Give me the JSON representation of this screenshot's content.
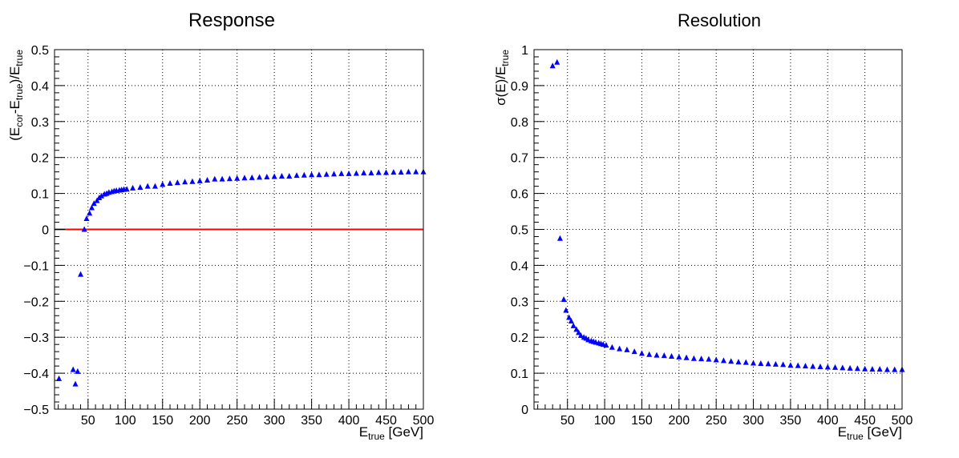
{
  "charts": [
    {
      "type": "scatter",
      "title": "Response",
      "xlabel": {
        "base": "E",
        "sub": "true",
        "suffix": " [GeV]"
      },
      "ylabel_parts": [
        {
          "t": "(E",
          "sub": false
        },
        {
          "t": "cor",
          "sub": true
        },
        {
          "t": "-E",
          "sub": false
        },
        {
          "t": "true",
          "sub": true
        },
        {
          "t": ")/E",
          "sub": false
        },
        {
          "t": "true",
          "sub": true
        }
      ],
      "xlim": [
        5,
        500
      ],
      "ylim": [
        -0.5,
        0.5
      ],
      "xticks": [
        50,
        100,
        150,
        200,
        250,
        300,
        350,
        400,
        450,
        500
      ],
      "xtick_labels": [
        "50",
        "100",
        "150",
        "200",
        "250",
        "300",
        "350",
        "400",
        "450",
        "500"
      ],
      "yticks": [
        -0.5,
        -0.4,
        -0.3,
        -0.2,
        -0.1,
        0,
        0.1,
        0.2,
        0.3,
        0.4,
        0.5
      ],
      "ytick_labels": [
        "−0.5",
        "−0.4",
        "−0.3",
        "−0.2",
        "−0.1",
        "0",
        "0.1",
        "0.2",
        "0.3",
        "0.4",
        "0.5"
      ],
      "hline": {
        "y": 0,
        "color": "#ff0000"
      },
      "marker_color": "#0000ff",
      "grid": true,
      "series": [
        {
          "name": "response",
          "x": [
            11,
            30,
            33,
            36,
            40,
            45,
            48,
            52,
            55,
            58,
            62,
            65,
            68,
            72,
            75,
            78,
            82,
            85,
            88,
            92,
            95,
            98,
            102,
            110,
            120,
            130,
            140,
            150,
            160,
            170,
            180,
            190,
            200,
            210,
            220,
            230,
            240,
            250,
            260,
            270,
            280,
            290,
            300,
            310,
            320,
            330,
            340,
            350,
            360,
            370,
            380,
            390,
            400,
            410,
            420,
            430,
            440,
            450,
            460,
            470,
            480,
            490,
            500
          ],
          "y": [
            -0.415,
            -0.39,
            -0.43,
            -0.395,
            -0.125,
            0.0,
            0.03,
            0.045,
            0.06,
            0.072,
            0.08,
            0.088,
            0.093,
            0.098,
            0.1,
            0.103,
            0.105,
            0.107,
            0.108,
            0.109,
            0.11,
            0.111,
            0.112,
            0.115,
            0.117,
            0.12,
            0.12,
            0.125,
            0.128,
            0.13,
            0.132,
            0.133,
            0.135,
            0.137,
            0.14,
            0.14,
            0.141,
            0.142,
            0.143,
            0.144,
            0.145,
            0.146,
            0.147,
            0.148,
            0.148,
            0.15,
            0.151,
            0.152,
            0.152,
            0.153,
            0.154,
            0.155,
            0.155,
            0.156,
            0.157,
            0.157,
            0.158,
            0.158,
            0.159,
            0.159,
            0.16,
            0.16,
            0.16
          ]
        }
      ]
    },
    {
      "type": "scatter",
      "title": "Resolution",
      "xlabel": {
        "base": "E",
        "sub": "true",
        "suffix": " [GeV]"
      },
      "ylabel_parts": [
        {
          "t": "σ(E)/E",
          "sub": false
        },
        {
          "t": "true",
          "sub": true
        }
      ],
      "xlim": [
        5,
        500
      ],
      "ylim": [
        0,
        1
      ],
      "xticks": [
        50,
        100,
        150,
        200,
        250,
        300,
        350,
        400,
        450,
        500
      ],
      "xtick_labels": [
        "50",
        "100",
        "150",
        "200",
        "250",
        "300",
        "350",
        "400",
        "450",
        "500"
      ],
      "yticks": [
        0,
        0.1,
        0.2,
        0.3,
        0.4,
        0.5,
        0.6,
        0.7,
        0.8,
        0.9,
        1
      ],
      "ytick_labels": [
        "0",
        "0.1",
        "0.2",
        "0.3",
        "0.4",
        "0.5",
        "0.6",
        "0.7",
        "0.8",
        "0.9",
        "1"
      ],
      "marker_color": "#0000ff",
      "grid": true,
      "series": [
        {
          "name": "resolution",
          "x": [
            30,
            36,
            40,
            45,
            48,
            52,
            55,
            58,
            62,
            65,
            68,
            72,
            75,
            78,
            82,
            85,
            88,
            92,
            95,
            98,
            102,
            110,
            120,
            130,
            140,
            150,
            160,
            170,
            180,
            190,
            200,
            210,
            220,
            230,
            240,
            250,
            260,
            270,
            280,
            290,
            300,
            310,
            320,
            330,
            340,
            350,
            360,
            370,
            380,
            390,
            400,
            410,
            420,
            430,
            440,
            450,
            460,
            470,
            480,
            490,
            500
          ],
          "y": [
            0.955,
            0.965,
            0.475,
            0.305,
            0.275,
            0.255,
            0.245,
            0.232,
            0.222,
            0.213,
            0.205,
            0.2,
            0.197,
            0.193,
            0.19,
            0.188,
            0.186,
            0.184,
            0.182,
            0.18,
            0.178,
            0.172,
            0.168,
            0.165,
            0.16,
            0.155,
            0.152,
            0.15,
            0.149,
            0.147,
            0.145,
            0.143,
            0.141,
            0.14,
            0.139,
            0.137,
            0.135,
            0.133,
            0.131,
            0.13,
            0.128,
            0.127,
            0.126,
            0.125,
            0.124,
            0.122,
            0.121,
            0.12,
            0.119,
            0.118,
            0.117,
            0.116,
            0.115,
            0.114,
            0.113,
            0.112,
            0.111,
            0.111,
            0.11,
            0.11,
            0.11
          ]
        }
      ]
    }
  ]
}
